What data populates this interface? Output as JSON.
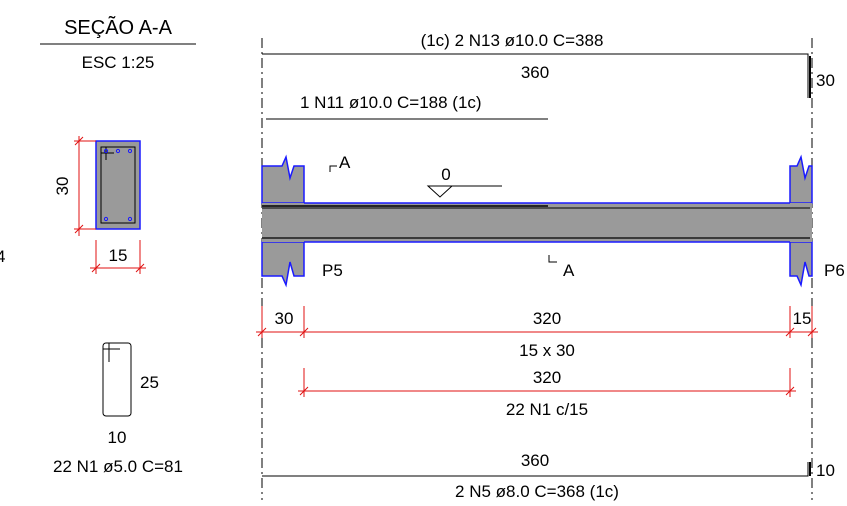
{
  "section": {
    "title": "SEÇÃO A-A",
    "scale": "ESC 1:25",
    "height_dim": "30",
    "width_dim": "15",
    "edge_label": "4"
  },
  "stirrup": {
    "height_label": "25",
    "width_label": "10",
    "bar_label": "22 N1 ø5.0 C=81"
  },
  "elevation": {
    "top_bar_label": "(1c)  2 N13 ø10.0 C=388",
    "top_bar_length": "360",
    "top_hook": "30",
    "neg_bar_label": "1 N11 ø10.0 C=188  (1c)",
    "section_mark": "A",
    "level_label": "0",
    "left_support": "P5",
    "right_support": "P6",
    "section_mark_bottom": "A",
    "dim_left_support": "30",
    "dim_span": "320",
    "dim_right_support": "15",
    "beam_size": "15 x 30",
    "stirrup_span": "320",
    "stirrup_label": "22 N1 c/15",
    "bottom_bar_length": "360",
    "bottom_hook": "10",
    "bottom_bar_label": "2 N5 ø8.0 C=368  (1c)"
  },
  "colors": {
    "concrete_fill": "#9a9a9a",
    "outline": "#1a1aff",
    "dimension": "#e01010",
    "line": "#000000"
  }
}
